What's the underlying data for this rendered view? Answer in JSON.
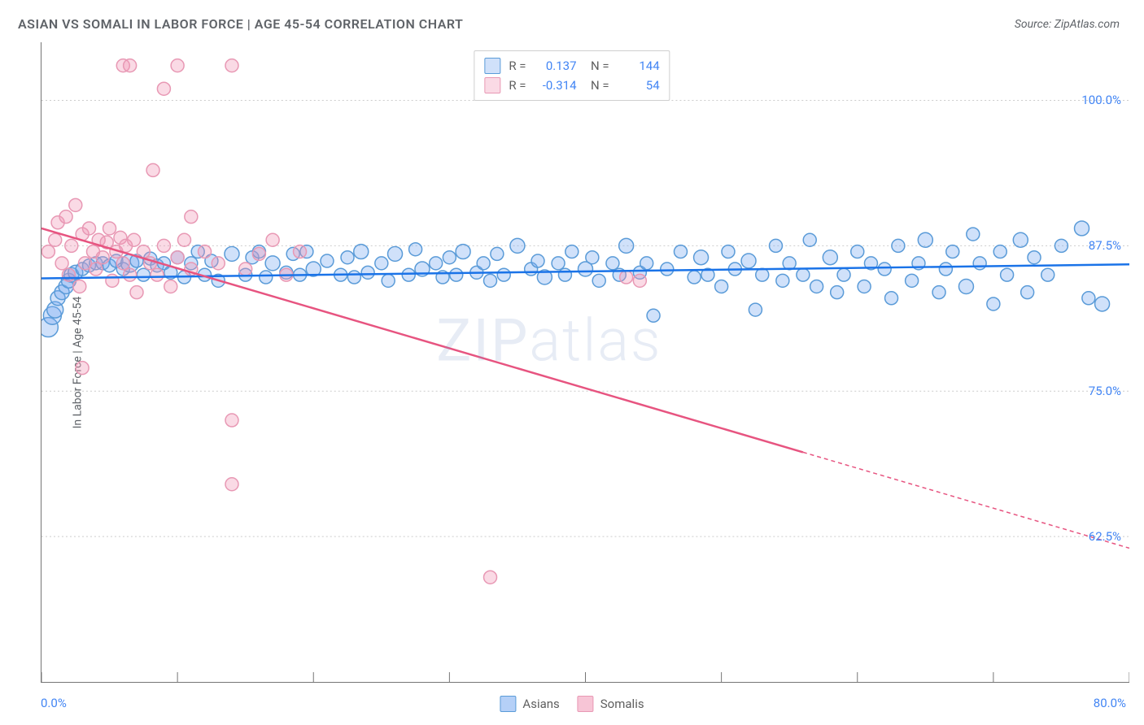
{
  "title": "ASIAN VS SOMALI IN LABOR FORCE | AGE 45-54 CORRELATION CHART",
  "source": "Source: ZipAtlas.com",
  "watermark": "ZIPatlas",
  "y_axis_title": "In Labor Force | Age 45-54",
  "chart": {
    "type": "scatter",
    "xlim": [
      0,
      80
    ],
    "ylim": [
      50,
      105
    ],
    "x_ticks": [
      0,
      10,
      20,
      30,
      40,
      50,
      60,
      70,
      80
    ],
    "y_gridlines": [
      62.5,
      75.0,
      87.5,
      100.0
    ],
    "y_tick_labels": [
      "62.5%",
      "75.0%",
      "87.5%",
      "100.0%"
    ],
    "x_min_label": "0.0%",
    "x_max_label": "80.0%",
    "background_color": "#ffffff",
    "grid_color": "#cccccc",
    "series": [
      {
        "name": "Asians",
        "marker_fill": "rgba(120,170,240,0.35)",
        "marker_stroke": "#5a9bd8",
        "line_color": "#1a73e8",
        "line_width": 2.5,
        "r_value": "0.137",
        "n_value": "144",
        "trend": {
          "x1": 0,
          "y1": 84.7,
          "x2": 80,
          "y2": 85.9,
          "solid_until_x": 80
        },
        "points": [
          [
            0.5,
            80.5,
            12
          ],
          [
            0.8,
            81.5,
            11
          ],
          [
            1,
            82,
            10
          ],
          [
            1.2,
            83,
            9
          ],
          [
            1.5,
            83.5,
            9
          ],
          [
            1.8,
            84,
            9
          ],
          [
            2,
            84.5,
            9
          ],
          [
            2.2,
            85,
            9
          ],
          [
            2.5,
            85.2,
            9
          ],
          [
            3,
            85.5,
            8
          ],
          [
            3.5,
            85.8,
            8
          ],
          [
            4,
            86,
            8
          ],
          [
            4.5,
            86,
            8
          ],
          [
            5,
            85.8,
            8
          ],
          [
            5.5,
            86.2,
            8
          ],
          [
            6,
            85.5,
            8
          ],
          [
            6.5,
            86,
            11
          ],
          [
            7,
            86.2,
            8
          ],
          [
            7.5,
            85,
            8
          ],
          [
            8,
            86.4,
            8
          ],
          [
            8.5,
            85.8,
            8
          ],
          [
            9,
            86,
            8
          ],
          [
            9.5,
            85.2,
            8
          ],
          [
            10,
            86.5,
            8
          ],
          [
            10.5,
            84.8,
            8
          ],
          [
            11,
            86,
            8
          ],
          [
            11.5,
            87,
            8
          ],
          [
            12,
            85,
            8
          ],
          [
            12.5,
            86.2,
            8
          ],
          [
            13,
            84.5,
            8
          ],
          [
            14,
            86.8,
            9
          ],
          [
            15,
            85,
            8
          ],
          [
            15.5,
            86.5,
            8
          ],
          [
            16,
            87,
            8
          ],
          [
            16.5,
            84.8,
            8
          ],
          [
            17,
            86,
            9
          ],
          [
            18,
            85.2,
            8
          ],
          [
            18.5,
            86.8,
            8
          ],
          [
            19,
            85,
            8
          ],
          [
            19.5,
            87,
            8
          ],
          [
            20,
            85.5,
            9
          ],
          [
            21,
            86.2,
            8
          ],
          [
            22,
            85,
            8
          ],
          [
            22.5,
            86.5,
            8
          ],
          [
            23,
            84.8,
            8
          ],
          [
            23.5,
            87,
            9
          ],
          [
            24,
            85.2,
            8
          ],
          [
            25,
            86,
            8
          ],
          [
            25.5,
            84.5,
            8
          ],
          [
            26,
            86.8,
            9
          ],
          [
            27,
            85,
            8
          ],
          [
            27.5,
            87.2,
            8
          ],
          [
            28,
            85.5,
            9
          ],
          [
            29,
            86,
            8
          ],
          [
            29.5,
            84.8,
            8
          ],
          [
            30,
            86.5,
            8
          ],
          [
            30.5,
            85,
            8
          ],
          [
            31,
            87,
            9
          ],
          [
            32,
            85.2,
            8
          ],
          [
            32.5,
            86,
            8
          ],
          [
            33,
            84.5,
            8
          ],
          [
            33.5,
            86.8,
            8
          ],
          [
            34,
            85,
            8
          ],
          [
            35,
            87.5,
            9
          ],
          [
            36,
            85.5,
            8
          ],
          [
            36.5,
            86.2,
            8
          ],
          [
            37,
            84.8,
            9
          ],
          [
            38,
            86,
            8
          ],
          [
            38.5,
            85,
            8
          ],
          [
            39,
            87,
            8
          ],
          [
            40,
            85.5,
            9
          ],
          [
            40.5,
            86.5,
            8
          ],
          [
            41,
            84.5,
            8
          ],
          [
            42,
            86,
            8
          ],
          [
            42.5,
            85,
            8
          ],
          [
            43,
            87.5,
            9
          ],
          [
            44,
            85.2,
            8
          ],
          [
            44.5,
            86,
            8
          ],
          [
            45,
            81.5,
            8
          ],
          [
            46,
            85.5,
            8
          ],
          [
            47,
            87,
            8
          ],
          [
            48,
            84.8,
            8
          ],
          [
            48.5,
            86.5,
            9
          ],
          [
            49,
            85,
            8
          ],
          [
            50,
            84,
            8
          ],
          [
            50.5,
            87,
            8
          ],
          [
            51,
            85.5,
            8
          ],
          [
            52,
            86.2,
            9
          ],
          [
            52.5,
            82,
            8
          ],
          [
            53,
            85,
            8
          ],
          [
            54,
            87.5,
            8
          ],
          [
            54.5,
            84.5,
            8
          ],
          [
            55,
            86,
            8
          ],
          [
            56,
            85,
            8
          ],
          [
            56.5,
            88,
            8
          ],
          [
            57,
            84,
            8
          ],
          [
            58,
            86.5,
            9
          ],
          [
            58.5,
            83.5,
            8
          ],
          [
            59,
            85,
            8
          ],
          [
            60,
            87,
            8
          ],
          [
            60.5,
            84,
            8
          ],
          [
            61,
            86,
            8
          ],
          [
            62,
            85.5,
            8
          ],
          [
            62.5,
            83,
            8
          ],
          [
            63,
            87.5,
            8
          ],
          [
            64,
            84.5,
            8
          ],
          [
            64.5,
            86,
            8
          ],
          [
            65,
            88,
            9
          ],
          [
            66,
            83.5,
            8
          ],
          [
            66.5,
            85.5,
            8
          ],
          [
            67,
            87,
            8
          ],
          [
            68,
            84,
            9
          ],
          [
            68.5,
            88.5,
            8
          ],
          [
            69,
            86,
            8
          ],
          [
            70,
            82.5,
            8
          ],
          [
            70.5,
            87,
            8
          ],
          [
            71,
            85,
            8
          ],
          [
            72,
            88,
            9
          ],
          [
            72.5,
            83.5,
            8
          ],
          [
            73,
            86.5,
            8
          ],
          [
            74,
            85,
            8
          ],
          [
            75,
            87.5,
            8
          ],
          [
            76.5,
            89,
            9
          ],
          [
            77,
            83,
            8
          ],
          [
            78,
            82.5,
            9
          ]
        ]
      },
      {
        "name": "Somalis",
        "marker_fill": "rgba(240,150,180,0.35)",
        "marker_stroke": "#e898b4",
        "line_color": "#e75480",
        "line_width": 2.5,
        "r_value": "-0.314",
        "n_value": "54",
        "trend": {
          "x1": 0,
          "y1": 89,
          "x2": 80,
          "y2": 61.5,
          "solid_until_x": 56
        },
        "points": [
          [
            0.5,
            87,
            8
          ],
          [
            1,
            88,
            8
          ],
          [
            1.2,
            89.5,
            8
          ],
          [
            1.5,
            86,
            8
          ],
          [
            1.8,
            90,
            8
          ],
          [
            2,
            85,
            8
          ],
          [
            2.2,
            87.5,
            8
          ],
          [
            2.5,
            91,
            8
          ],
          [
            2.8,
            84,
            8
          ],
          [
            3,
            88.5,
            8
          ],
          [
            3.2,
            86,
            8
          ],
          [
            3.5,
            89,
            8
          ],
          [
            3.8,
            87,
            8
          ],
          [
            4,
            85.5,
            8
          ],
          [
            4.2,
            88,
            8
          ],
          [
            4.5,
            86.5,
            8
          ],
          [
            4.8,
            87.8,
            8
          ],
          [
            5,
            89,
            8
          ],
          [
            5.2,
            84.5,
            8
          ],
          [
            5.5,
            87,
            8
          ],
          [
            5.8,
            88.2,
            8
          ],
          [
            6,
            86,
            8
          ],
          [
            6.2,
            87.5,
            8
          ],
          [
            6.5,
            85,
            8
          ],
          [
            6.8,
            88,
            8
          ],
          [
            6,
            103,
            8
          ],
          [
            6.5,
            103,
            8
          ],
          [
            7,
            83.5,
            8
          ],
          [
            7.5,
            87,
            8
          ],
          [
            8,
            86,
            8
          ],
          [
            8.2,
            94,
            8
          ],
          [
            8.5,
            85,
            8
          ],
          [
            9,
            87.5,
            8
          ],
          [
            9,
            101,
            8
          ],
          [
            9.5,
            84,
            8
          ],
          [
            10,
            86.5,
            8
          ],
          [
            10,
            103,
            8
          ],
          [
            10.5,
            88,
            8
          ],
          [
            11,
            85.5,
            8
          ],
          [
            11,
            90,
            8
          ],
          [
            12,
            87,
            8
          ],
          [
            13,
            86,
            8
          ],
          [
            14,
            103,
            8
          ],
          [
            14,
            72.5,
            8
          ],
          [
            14,
            67,
            8
          ],
          [
            15,
            85.5,
            8
          ],
          [
            16,
            86.8,
            8
          ],
          [
            17,
            88,
            8
          ],
          [
            18,
            85,
            8
          ],
          [
            19,
            87,
            8
          ],
          [
            3,
            77,
            8
          ],
          [
            33,
            59,
            8
          ],
          [
            43,
            84.8,
            8
          ],
          [
            44,
            84.5,
            8
          ]
        ]
      }
    ]
  },
  "legend_bottom": [
    {
      "label": "Asians",
      "fill": "rgba(120,170,240,0.55)",
      "stroke": "#5a9bd8"
    },
    {
      "label": "Somalis",
      "fill": "rgba(240,150,180,0.55)",
      "stroke": "#e898b4"
    }
  ]
}
